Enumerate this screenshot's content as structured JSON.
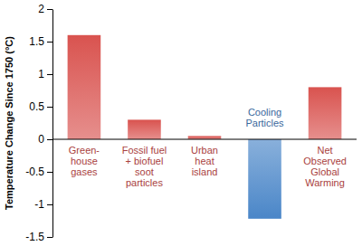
{
  "chart_data": {
    "type": "bar",
    "y_label": "Temperature Change Since 1750 (°C)",
    "categories": [
      "Green-house gases",
      "Fossil fuel + biofuel soot particles",
      "Urban heat island",
      "Cooling Particles",
      "Net Observed Global Warming"
    ],
    "values": [
      1.6,
      0.3,
      0.05,
      -1.22,
      0.8
    ],
    "colors": [
      "#d9534f",
      "#d9534f",
      "#d9534f",
      "#4a86c8",
      "#d9534f"
    ],
    "ylim": [
      -1.5,
      2
    ],
    "yticks": [
      -1.5,
      -1,
      -0.5,
      0,
      0.5,
      1,
      1.5,
      2
    ],
    "grid": false
  }
}
